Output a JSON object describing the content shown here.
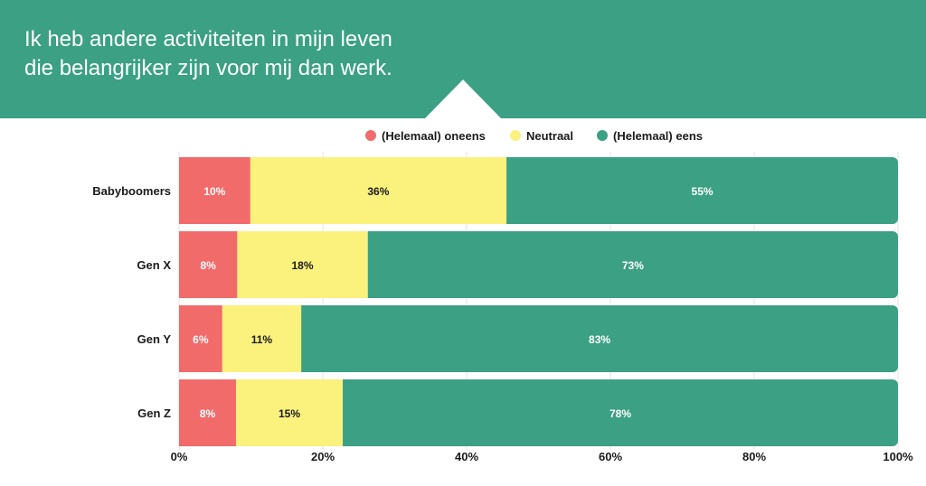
{
  "header": {
    "title": "Ik heb andere activiteiten in mijn leven die belangrijker zijn voor mij dan werk."
  },
  "colors": {
    "header_bg": "#3ba084",
    "disagree": "#f26b6b",
    "neutral": "#fbf17d",
    "agree": "#3ba084"
  },
  "chart_data": {
    "type": "bar",
    "orientation": "horizontal",
    "stacked": true,
    "title": "Ik heb andere activiteiten in mijn leven die belangrijker zijn voor mij dan werk.",
    "categories": [
      "Babyboomers",
      "Gen X",
      "Gen Y",
      "Gen Z"
    ],
    "series": [
      {
        "name": "(Helemaal) oneens",
        "color": "#f26b6b",
        "label_color": "#ffffff",
        "values": [
          10,
          8,
          6,
          8
        ]
      },
      {
        "name": "Neutraal",
        "color": "#fbf17d",
        "label_color": "#1a1a1a",
        "values": [
          36,
          18,
          11,
          15
        ]
      },
      {
        "name": "(Helemaal) eens",
        "color": "#3ba084",
        "label_color": "#ffffff",
        "values": [
          55,
          73,
          83,
          78
        ]
      }
    ],
    "value_suffix": "%",
    "xlim": [
      0,
      100
    ],
    "x_ticks": [
      "0%",
      "20%",
      "40%",
      "60%",
      "80%",
      "100%"
    ],
    "grid": true,
    "legend_position": "top"
  }
}
